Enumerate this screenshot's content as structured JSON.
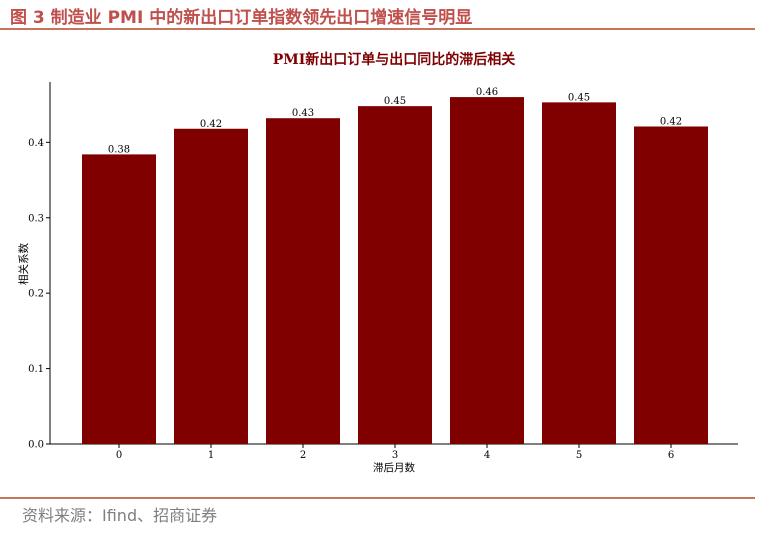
{
  "figure": {
    "title": "图 3 制造业 PMI 中的新出口订单指数领先出口增速信号明显",
    "source": "资料来源：Ifind、招商证券"
  },
  "colors": {
    "bar": "#800000",
    "title_accent": "#c0504d",
    "rule": "#c8745a"
  },
  "chart_data": {
    "type": "bar",
    "title": "PMI新出口订单与出口同比的滞后相关",
    "xlabel": "滞后月数",
    "ylabel": "相关系数",
    "categories": [
      "0",
      "1",
      "2",
      "3",
      "4",
      "5",
      "6"
    ],
    "values": [
      0.384,
      0.418,
      0.432,
      0.448,
      0.46,
      0.453,
      0.421
    ],
    "data_labels": [
      "0.38",
      "0.42",
      "0.43",
      "0.45",
      "0.46",
      "0.45",
      "0.42"
    ],
    "ylim": [
      0,
      0.48
    ],
    "yticks": [
      "0.0",
      "0.1",
      "0.2",
      "0.3",
      "0.4"
    ],
    "grid": false,
    "legend": "none"
  }
}
